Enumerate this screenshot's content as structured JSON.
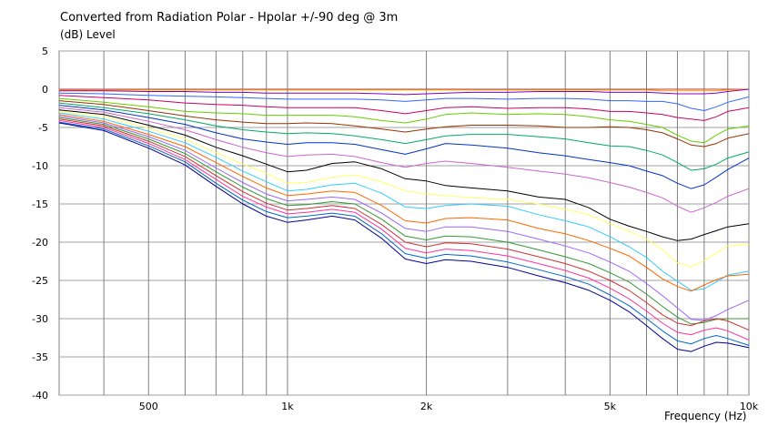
{
  "chart_data": {
    "type": "line",
    "title": "Converted from Radiation Polar - Hpolar +/-90 deg @ 3m",
    "ylabel": "(dB)  Level",
    "xlabel": "Frequency  (Hz)",
    "xscale": "log",
    "xlim": [
      320,
      10000
    ],
    "ylim": [
      -40,
      5
    ],
    "grid": true,
    "xticks": [
      {
        "value": 500,
        "label": "500"
      },
      {
        "value": 1000,
        "label": "1k"
      },
      {
        "value": 2000,
        "label": "2k"
      },
      {
        "value": 5000,
        "label": "5k"
      },
      {
        "value": 10000,
        "label": "10k"
      }
    ],
    "yticks": [
      5,
      0,
      -5,
      -10,
      -15,
      -20,
      -25,
      -30,
      -35,
      -40
    ],
    "x": [
      320,
      400,
      500,
      600,
      700,
      800,
      900,
      1000,
      1100,
      1250,
      1400,
      1600,
      1800,
      2000,
      2200,
      2500,
      3000,
      3500,
      4000,
      4500,
      5000,
      5500,
      6000,
      6500,
      7000,
      7500,
      8000,
      8500,
      9000,
      10000
    ],
    "series": [
      {
        "color": "#cc3333",
        "values": [
          0,
          0,
          0,
          0,
          0,
          0,
          0,
          0,
          0,
          0,
          0,
          0,
          0,
          0,
          0,
          0,
          0,
          0,
          0,
          0,
          0,
          0,
          0,
          0,
          0,
          0,
          0,
          0,
          0,
          0
        ]
      },
      {
        "color": "#ff9900",
        "values": [
          -0.1,
          -0.1,
          -0.1,
          -0.1,
          -0.1,
          -0.1,
          -0.1,
          -0.1,
          -0.1,
          -0.1,
          -0.1,
          -0.1,
          -0.1,
          -0.1,
          -0.1,
          -0.1,
          -0.1,
          -0.1,
          -0.1,
          -0.1,
          -0.1,
          -0.1,
          -0.1,
          -0.2,
          -0.2,
          -0.2,
          -0.2,
          -0.2,
          -0.1,
          0
        ]
      },
      {
        "color": "#8000c0",
        "values": [
          -0.2,
          -0.2,
          -0.3,
          -0.3,
          -0.4,
          -0.4,
          -0.5,
          -0.5,
          -0.5,
          -0.5,
          -0.5,
          -0.6,
          -0.7,
          -0.6,
          -0.5,
          -0.4,
          -0.4,
          -0.3,
          -0.3,
          -0.3,
          -0.4,
          -0.4,
          -0.4,
          -0.5,
          -0.6,
          -0.6,
          -0.6,
          -0.5,
          -0.3,
          0
        ]
      },
      {
        "color": "#3366ff",
        "values": [
          -0.5,
          -0.6,
          -0.8,
          -0.9,
          -1,
          -1.1,
          -1.2,
          -1.3,
          -1.3,
          -1.3,
          -1.3,
          -1.4,
          -1.6,
          -1.4,
          -1.2,
          -1.2,
          -1.3,
          -1.2,
          -1.2,
          -1.3,
          -1.5,
          -1.5,
          -1.6,
          -1.6,
          -1.9,
          -2.5,
          -2.8,
          -2.3,
          -1.7,
          -1
        ]
      },
      {
        "color": "#cc0066",
        "values": [
          -0.8,
          -1.1,
          -1.4,
          -1.8,
          -2,
          -2.1,
          -2.3,
          -2.4,
          -2.4,
          -2.4,
          -2.4,
          -2.8,
          -3.2,
          -2.8,
          -2.4,
          -2.3,
          -2.5,
          -2.4,
          -2.4,
          -2.6,
          -2.9,
          -2.9,
          -3.1,
          -3.3,
          -3.7,
          -3.9,
          -4.1,
          -3.6,
          -2.9,
          -2.4
        ]
      },
      {
        "color": "#66cc00",
        "values": [
          -1.2,
          -1.7,
          -2.3,
          -2.9,
          -3.1,
          -3.2,
          -3.4,
          -3.4,
          -3.4,
          -3.4,
          -3.6,
          -4.1,
          -4.4,
          -3.9,
          -3.3,
          -3.1,
          -3.3,
          -3.2,
          -3.3,
          -3.6,
          -4,
          -4.2,
          -4.6,
          -5,
          -6,
          -6.8,
          -7,
          -6,
          -5.2,
          -4.8
        ]
      },
      {
        "color": "#993300",
        "values": [
          -1.5,
          -2,
          -2.8,
          -3.5,
          -4,
          -4.3,
          -4.5,
          -4.5,
          -4.4,
          -4.5,
          -4.8,
          -5.2,
          -5.6,
          -5.2,
          -4.9,
          -4.7,
          -4.7,
          -4.8,
          -5,
          -5,
          -4.9,
          -5,
          -5.3,
          -5.7,
          -6.5,
          -7.3,
          -7.5,
          -7.1,
          -6.4,
          -5.8
        ]
      },
      {
        "color": "#00aa66",
        "values": [
          -1.8,
          -2.4,
          -3.2,
          -4,
          -4.8,
          -5.3,
          -5.6,
          -5.8,
          -5.7,
          -5.8,
          -6.1,
          -6.6,
          -7.1,
          -6.6,
          -6.1,
          -5.9,
          -5.9,
          -6.2,
          -6.5,
          -7,
          -7.4,
          -7.5,
          -8,
          -8.6,
          -9.6,
          -10.6,
          -10.4,
          -9.8,
          -9,
          -8.2
        ]
      },
      {
        "color": "#0033cc",
        "values": [
          -2.1,
          -2.7,
          -3.7,
          -4.6,
          -5.7,
          -6.5,
          -6.9,
          -7.2,
          -7,
          -7,
          -7.2,
          -7.9,
          -8.5,
          -7.8,
          -7.1,
          -7.3,
          -7.7,
          -8.3,
          -8.7,
          -9.2,
          -9.6,
          -10,
          -10.7,
          -11.3,
          -12.3,
          -13,
          -12.5,
          -11.5,
          -10.5,
          -9
        ]
      },
      {
        "color": "#cc66cc",
        "values": [
          -2.4,
          -3,
          -4.2,
          -5.3,
          -6.6,
          -7.6,
          -8.3,
          -8.8,
          -8.6,
          -8.5,
          -8.8,
          -9.6,
          -10.2,
          -9.7,
          -9.4,
          -9.7,
          -10.2,
          -10.7,
          -11.1,
          -11.6,
          -12.2,
          -12.8,
          -13.5,
          -14.2,
          -15.3,
          -16.1,
          -15.5,
          -14.8,
          -14,
          -13
        ]
      },
      {
        "color": "#000000",
        "values": [
          -2.7,
          -3.3,
          -4.7,
          -6,
          -7.6,
          -8.7,
          -9.8,
          -10.8,
          -10.6,
          -9.7,
          -9.5,
          -10.4,
          -11.7,
          -12,
          -12.6,
          -12.9,
          -13.3,
          -14.1,
          -14.4,
          -15.5,
          -17,
          -17.9,
          -18.6,
          -19.3,
          -19.8,
          -19.6,
          -19,
          -18.5,
          -18,
          -17.6
        ]
      },
      {
        "color": "#ffff66",
        "values": [
          -2.9,
          -3.6,
          -5.1,
          -6.5,
          -8.3,
          -9.8,
          -11,
          -12.3,
          -12.2,
          -11.5,
          -11.2,
          -12.1,
          -13.3,
          -13.7,
          -13.9,
          -14.2,
          -14.4,
          -15,
          -15.7,
          -16.4,
          -17.6,
          -18.6,
          -19.6,
          -21,
          -22.7,
          -23.2,
          -22.4,
          -21.4,
          -20.5,
          -20.3
        ]
      },
      {
        "color": "#33ccff",
        "values": [
          -3.1,
          -3.9,
          -5.5,
          -7,
          -8.9,
          -10.7,
          -12.1,
          -13.3,
          -13.1,
          -12.5,
          -12.3,
          -13.6,
          -15.4,
          -15.6,
          -15.2,
          -15,
          -15.3,
          -16.4,
          -17.2,
          -18,
          -19.3,
          -20.6,
          -22,
          -23.8,
          -25.1,
          -26.3,
          -26.1,
          -25.2,
          -24.3,
          -23.8
        ]
      },
      {
        "color": "#ff6600",
        "values": [
          -3.3,
          -4.2,
          -5.9,
          -7.5,
          -9.6,
          -11.4,
          -12.9,
          -13.9,
          -13.7,
          -13.3,
          -13.5,
          -15.2,
          -17.2,
          -17.5,
          -16.9,
          -16.8,
          -17.1,
          -18.2,
          -18.9,
          -19.8,
          -20.8,
          -21.8,
          -23.3,
          -24.8,
          -25.8,
          -26.4,
          -25.6,
          -24.9,
          -24.4,
          -24.2
        ]
      },
      {
        "color": "#9966ff",
        "values": [
          -3.5,
          -4.4,
          -6.2,
          -8,
          -10.3,
          -12.2,
          -13.7,
          -14.6,
          -14.4,
          -14.1,
          -14.4,
          -16.2,
          -18.2,
          -18.6,
          -18,
          -18,
          -18.6,
          -19.6,
          -20.5,
          -21.4,
          -22.6,
          -23.8,
          -25.4,
          -27,
          -28.6,
          -30.1,
          -30.2,
          -29.6,
          -28.8,
          -27.6
        ]
      },
      {
        "color": "#339933",
        "values": [
          -3.7,
          -4.6,
          -6.5,
          -8.4,
          -10.8,
          -12.8,
          -14.3,
          -15.2,
          -15.1,
          -14.7,
          -15,
          -17,
          -19.2,
          -19.7,
          -19.2,
          -19.3,
          -20,
          -21,
          -21.9,
          -22.8,
          -24,
          -25.2,
          -26.8,
          -28.4,
          -29.8,
          -30.7,
          -30.5,
          -30.1,
          -30,
          -30
        ]
      },
      {
        "color": "#cc3333",
        "values": [
          -3.9,
          -4.8,
          -6.8,
          -8.8,
          -11.3,
          -13.4,
          -14.9,
          -15.8,
          -15.6,
          -15.2,
          -15.6,
          -17.7,
          -20,
          -20.6,
          -20.1,
          -20.2,
          -20.9,
          -21.9,
          -22.8,
          -23.8,
          -25,
          -26.3,
          -27.9,
          -29.5,
          -30.6,
          -30.9,
          -30.3,
          -30,
          -30.3,
          -31.5
        ]
      },
      {
        "color": "#ff3399",
        "values": [
          -4.1,
          -5,
          -7.1,
          -9.2,
          -11.8,
          -14,
          -15.4,
          -16.3,
          -16.1,
          -15.7,
          -16.1,
          -18.3,
          -20.8,
          -21.4,
          -20.9,
          -21.1,
          -21.8,
          -22.8,
          -23.7,
          -24.7,
          -26,
          -27.4,
          -29,
          -30.6,
          -31.8,
          -32.1,
          -31.5,
          -31.2,
          -31.6,
          -32.8
        ]
      },
      {
        "color": "#0066cc",
        "values": [
          -4.3,
          -5.2,
          -7.4,
          -9.5,
          -12.3,
          -14.5,
          -16,
          -16.8,
          -16.6,
          -16.2,
          -16.6,
          -18.9,
          -21.5,
          -22.1,
          -21.6,
          -21.8,
          -22.6,
          -23.6,
          -24.5,
          -25.5,
          -26.9,
          -28.3,
          -30,
          -31.6,
          -32.9,
          -33.3,
          -32.6,
          -32.2,
          -32.6,
          -33.5
        ]
      },
      {
        "color": "#000099",
        "values": [
          -4.4,
          -5.4,
          -7.7,
          -9.9,
          -12.7,
          -15,
          -16.6,
          -17.4,
          -17.1,
          -16.6,
          -17.1,
          -19.5,
          -22.2,
          -22.8,
          -22.3,
          -22.5,
          -23.3,
          -24.4,
          -25.3,
          -26.3,
          -27.6,
          -29.1,
          -30.9,
          -32.6,
          -34,
          -34.3,
          -33.6,
          -33.1,
          -33.2,
          -33.8
        ]
      }
    ]
  }
}
